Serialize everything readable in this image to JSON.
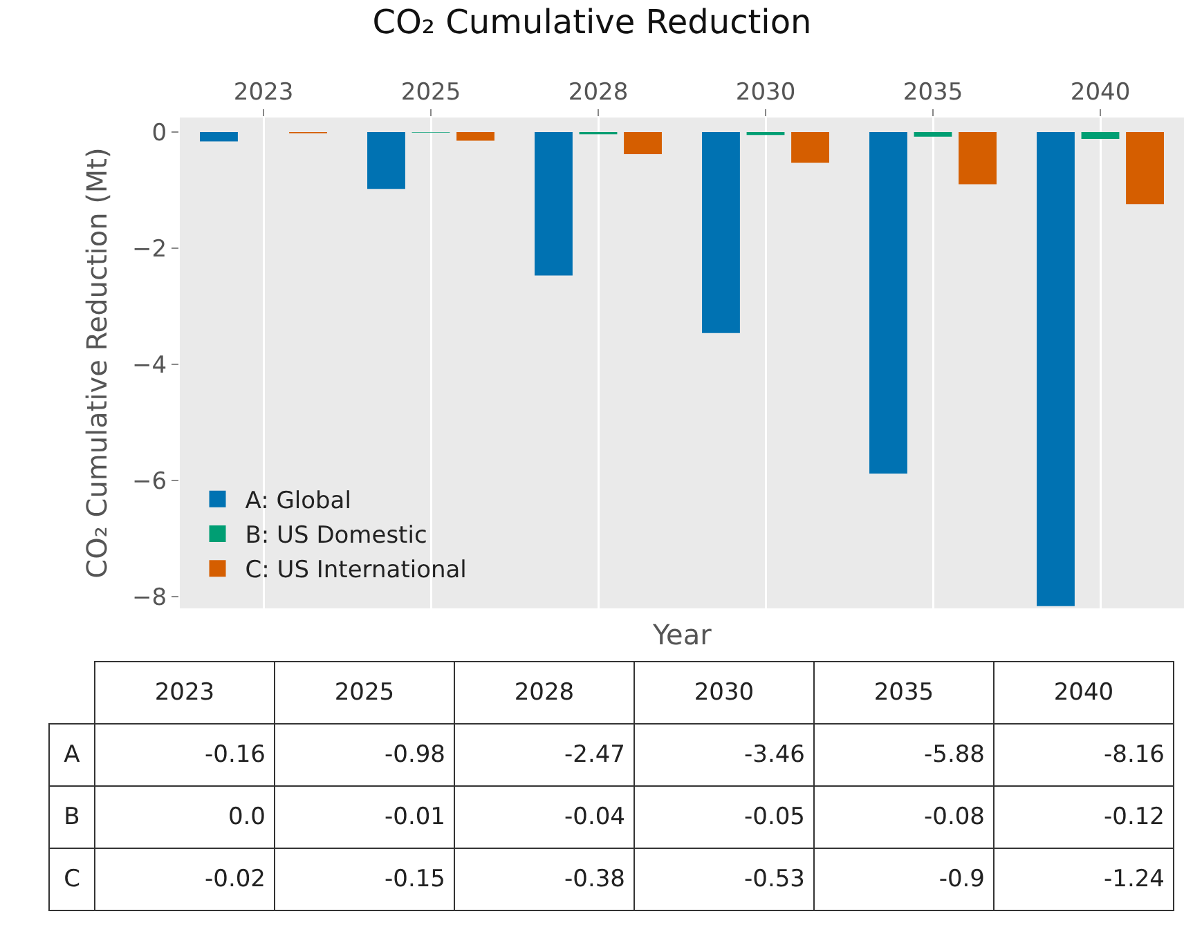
{
  "chart_data": {
    "type": "bar",
    "title": "CO₂ Cumulative Reduction",
    "xlabel": "Year",
    "ylabel": "CO₂ Cumulative Reduction (Mt)",
    "categories": [
      "2023",
      "2025",
      "2028",
      "2030",
      "2035",
      "2040"
    ],
    "series": [
      {
        "name": "A: Global",
        "color": "#0072b2",
        "values": [
          -0.16,
          -0.98,
          -2.47,
          -3.46,
          -5.88,
          -8.16
        ],
        "value_labels": [
          "-0.16",
          "-0.98",
          "-2.47",
          "-3.46",
          "-5.88",
          "-8.16"
        ]
      },
      {
        "name": "B: US Domestic",
        "color": "#009e73",
        "values": [
          0,
          -0.01,
          -0.04,
          -0.05,
          -0.08,
          -0.12
        ],
        "value_labels": [
          "0.0",
          "-0.01",
          "-0.04",
          "-0.05",
          "-0.08",
          "-0.12"
        ]
      },
      {
        "name": "C: US International",
        "color": "#d55e00",
        "values": [
          -0.02,
          -0.15,
          -0.38,
          -0.53,
          -0.9,
          -1.24
        ],
        "value_labels": [
          "-0.02",
          "-0.15",
          "-0.38",
          "-0.53",
          "-0.9",
          "-1.24"
        ]
      }
    ],
    "annotations": [
      "A",
      "B",
      "C"
    ],
    "ylim": [
      -8.2,
      0.25
    ],
    "yticks": [
      0,
      -2,
      -4,
      -6,
      -8
    ],
    "grid": "x",
    "legend": "bottom left"
  }
}
